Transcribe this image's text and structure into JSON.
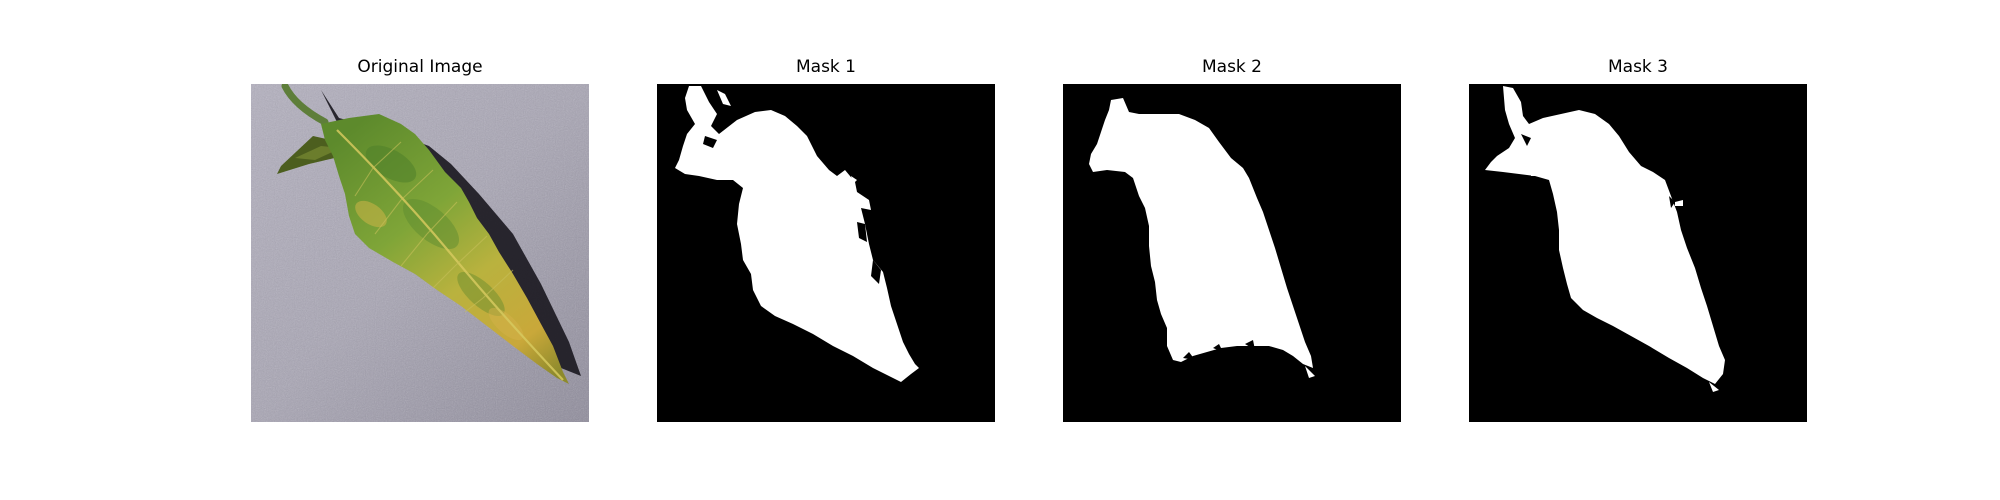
{
  "panels": [
    {
      "title": "Original Image"
    },
    {
      "title": "Mask 1"
    },
    {
      "title": "Mask 2"
    },
    {
      "title": "Mask 3"
    }
  ],
  "colors": {
    "mask_background": "#000000",
    "mask_foreground": "#ffffff",
    "photo_background": "#a9a6b4",
    "leaf_green": "#6f9a34",
    "leaf_yellow": "#c8b43c",
    "leaf_shadow": "#1c1a22"
  }
}
